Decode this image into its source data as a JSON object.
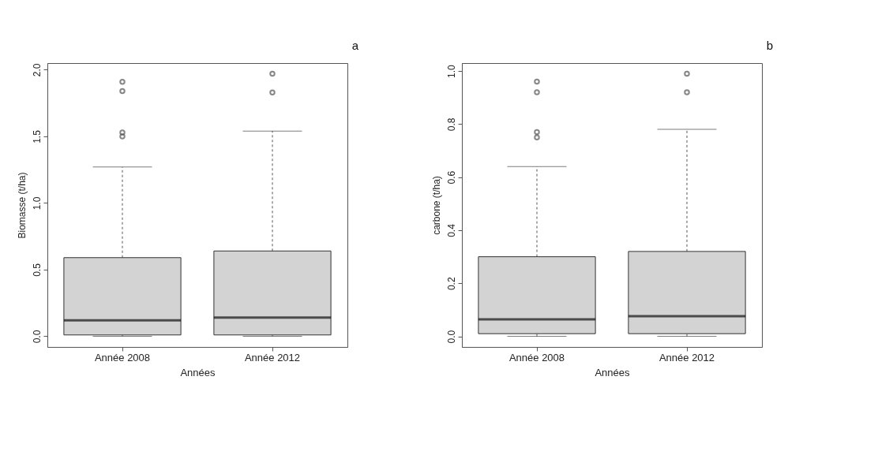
{
  "chart_data": [
    {
      "type": "box",
      "annotations": [
        "a"
      ],
      "categories": [
        "Année 2008",
        "Année 2012"
      ],
      "xlabel": "Années",
      "ylabel": "Biomasse (t/ha)",
      "color": "#d3d3d3",
      "ylim": [
        -0.08,
        2.05
      ],
      "yticks": [
        {
          "value": 0,
          "label": "0.0"
        },
        0.5,
        {
          "value": 1,
          "label": "1.0"
        },
        1.5,
        {
          "value": 2,
          "label": "2.0"
        }
      ],
      "boxes": [
        {
          "low": 0,
          "q1": 0.01,
          "median": 0.12,
          "q3": 0.59,
          "high": 1.27,
          "outliers": [
            1.91,
            1.84,
            1.53,
            1.5
          ]
        },
        {
          "low": 0,
          "q1": 0.01,
          "median": 0.14,
          "q3": 0.64,
          "high": 1.54,
          "outliers": [
            1.97,
            1.83
          ]
        }
      ]
    },
    {
      "type": "box",
      "annotations": [
        "b"
      ],
      "categories": [
        "Année 2008",
        "Année 2012"
      ],
      "xlabel": "Années",
      "ylabel": "carbone (t/ha)",
      "color": "#d3d3d3",
      "ylim": [
        -0.04,
        1.03
      ],
      "yticks": [
        {
          "value": 0,
          "label": "0.0"
        },
        0.2,
        0.4,
        0.6,
        0.8,
        {
          "value": 1,
          "label": "1.0"
        }
      ],
      "boxes": [
        {
          "low": 0,
          "q1": 0.01,
          "median": 0.064,
          "q3": 0.3,
          "high": 0.64,
          "outliers": [
            0.96,
            0.92,
            0.77,
            0.75
          ]
        },
        {
          "low": 0,
          "q1": 0.01,
          "median": 0.076,
          "q3": 0.32,
          "high": 0.78,
          "outliers": [
            0.99,
            0.92
          ]
        }
      ]
    }
  ]
}
